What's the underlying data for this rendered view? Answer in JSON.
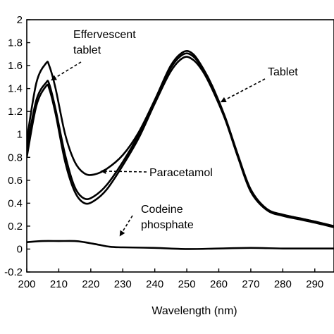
{
  "chart_data": {
    "type": "line",
    "xlabel": "Wavelength (nm)",
    "ylabel": "",
    "xlim": [
      200,
      296
    ],
    "ylim": [
      -0.2,
      2.0
    ],
    "x_ticks": [
      "200",
      "210",
      "220",
      "230",
      "240",
      "250",
      "260",
      "270",
      "280",
      "290"
    ],
    "y_ticks": [
      "2",
      "1.8",
      "1.6",
      "1.4",
      "1.2",
      "1",
      "0.8",
      "0.6",
      "0.4",
      "0.2",
      "0",
      "-0.2"
    ],
    "grid": false,
    "series": [
      {
        "name": "Effervescent tablet",
        "x": [
          200,
          203,
          206,
          207,
          209,
          212,
          215,
          218,
          221,
          225,
          230,
          235,
          240,
          245,
          249,
          252,
          255,
          258,
          262,
          266,
          270,
          275,
          280,
          285,
          290,
          296
        ],
        "y": [
          0.95,
          1.45,
          1.62,
          1.6,
          1.4,
          1.0,
          0.76,
          0.66,
          0.65,
          0.7,
          0.82,
          1.02,
          1.3,
          1.6,
          1.72,
          1.7,
          1.58,
          1.42,
          1.15,
          0.82,
          0.52,
          0.35,
          0.3,
          0.27,
          0.24,
          0.2
        ]
      },
      {
        "name": "Tablet",
        "x": [
          200,
          203,
          206,
          207,
          209,
          212,
          215,
          218,
          221,
          225,
          230,
          235,
          240,
          245,
          249,
          252,
          255,
          258,
          262,
          266,
          270,
          275,
          280,
          285,
          290,
          296
        ],
        "y": [
          0.88,
          1.3,
          1.45,
          1.44,
          1.22,
          0.82,
          0.54,
          0.44,
          0.46,
          0.56,
          0.76,
          1.0,
          1.3,
          1.58,
          1.7,
          1.68,
          1.57,
          1.4,
          1.14,
          0.81,
          0.51,
          0.35,
          0.3,
          0.27,
          0.24,
          0.2
        ]
      },
      {
        "name": "Paracetamol",
        "x": [
          200,
          203,
          206,
          207,
          209,
          212,
          215,
          218,
          221,
          225,
          230,
          235,
          240,
          245,
          249,
          252,
          255,
          258,
          262,
          266,
          270,
          275,
          280,
          285,
          290,
          296
        ],
        "y": [
          0.8,
          1.25,
          1.42,
          1.4,
          1.18,
          0.76,
          0.5,
          0.4,
          0.42,
          0.52,
          0.73,
          0.97,
          1.27,
          1.55,
          1.67,
          1.65,
          1.55,
          1.39,
          1.13,
          0.8,
          0.5,
          0.34,
          0.29,
          0.26,
          0.23,
          0.19
        ]
      },
      {
        "name": "Codeine phosphate",
        "x": [
          200,
          205,
          210,
          215,
          218,
          222,
          226,
          230,
          240,
          250,
          260,
          270,
          280,
          290,
          296
        ],
        "y": [
          0.06,
          0.07,
          0.07,
          0.07,
          0.06,
          0.04,
          0.02,
          0.015,
          0.01,
          0.0,
          0.005,
          0.01,
          0.005,
          0.005,
          0.005
        ]
      }
    ],
    "annotations": [
      {
        "lines": [
          "Effervescent",
          "tablet"
        ],
        "target_x": 207.5,
        "target_y": 1.47
      },
      {
        "lines": [
          "Tablet"
        ],
        "target_x": 260.5,
        "target_y": 1.28
      },
      {
        "lines": [
          "Paracetamol"
        ],
        "target_x": 223,
        "target_y": 0.68
      },
      {
        "lines": [
          "Codeine",
          "phosphate"
        ],
        "target_x": 229,
        "target_y": 0.11
      }
    ]
  }
}
